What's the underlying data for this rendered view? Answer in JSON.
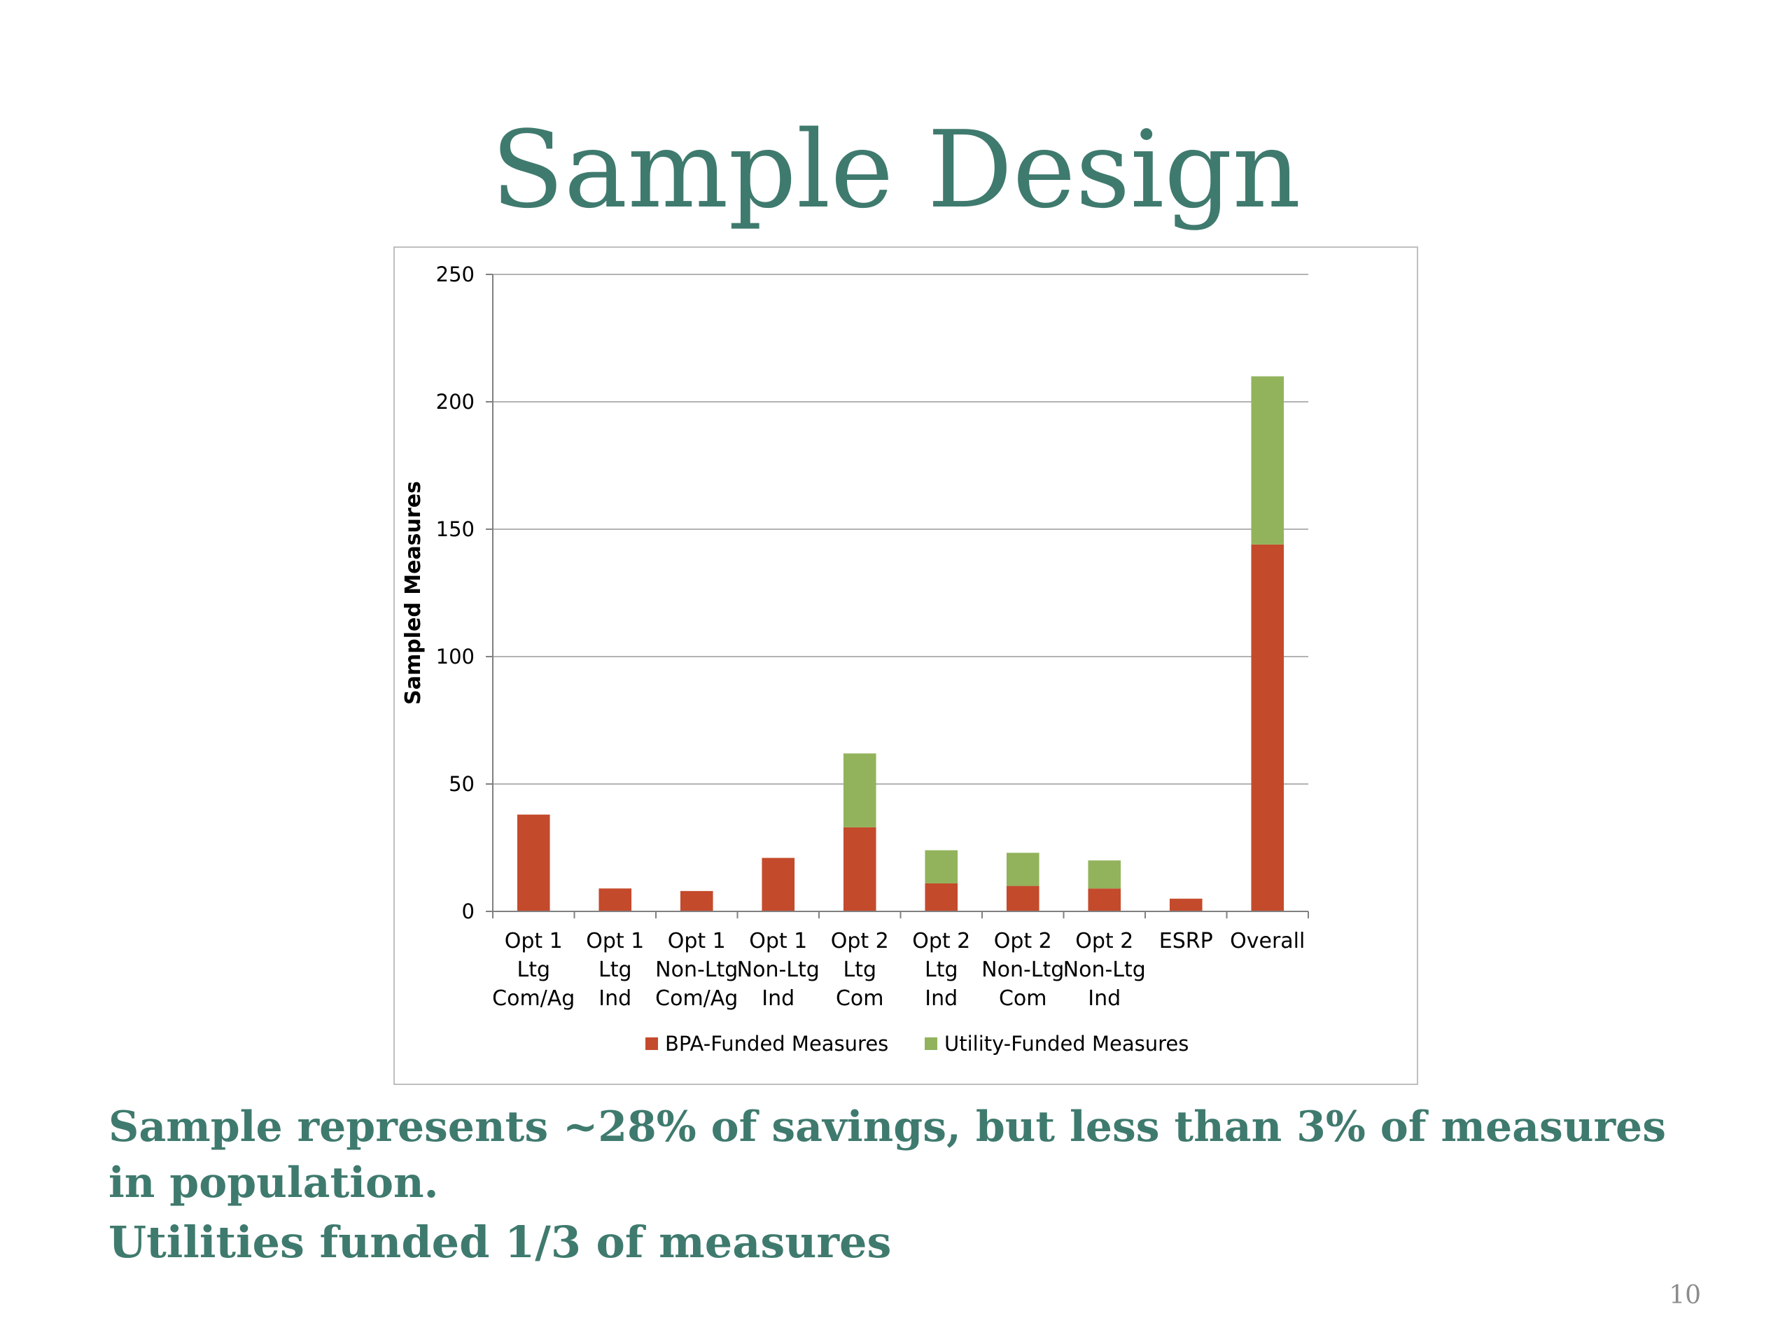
{
  "slide": {
    "title": "Sample Design",
    "caption_line1": "Sample represents ~28% of savings, but less than 3% of measures in population.",
    "caption_line2": "Utilities  funded 1/3 of measures",
    "page_number": "10"
  },
  "colors": {
    "title": "#3f7a6e",
    "bpa": "#c44a2c",
    "utility": "#92b35c",
    "gridline": "#b3b3b3",
    "axis": "#808080"
  },
  "chart_data": {
    "type": "bar",
    "stacked": true,
    "categories": [
      [
        "Opt 1",
        "Ltg",
        "Com/Ag"
      ],
      [
        "Opt 1",
        "Ltg",
        "Ind"
      ],
      [
        "Opt 1",
        "Non-Ltg",
        "Com/Ag"
      ],
      [
        "Opt 1",
        "Non-Ltg",
        "Ind"
      ],
      [
        "Opt 2",
        "Ltg",
        "Com"
      ],
      [
        "Opt 2",
        "Ltg",
        "Ind"
      ],
      [
        "Opt 2",
        "Non-Ltg",
        "Com"
      ],
      [
        "Opt 2",
        "Non-Ltg",
        "Ind"
      ],
      [
        "ESRP"
      ],
      [
        "Overall"
      ]
    ],
    "series": [
      {
        "name": "BPA-Funded Measures",
        "color": "#c44a2c",
        "values": [
          38,
          9,
          8,
          21,
          33,
          11,
          10,
          9,
          5,
          144
        ]
      },
      {
        "name": "Utility-Funded Measures",
        "color": "#92b35c",
        "values": [
          0,
          0,
          0,
          0,
          29,
          13,
          13,
          11,
          0,
          66
        ]
      }
    ],
    "ylabel": "Sampled Measures",
    "xlabel": "",
    "ylim": [
      0,
      250
    ],
    "yticks": [
      0,
      50,
      100,
      150,
      200,
      250
    ],
    "grid": true,
    "legend_position": "bottom"
  }
}
